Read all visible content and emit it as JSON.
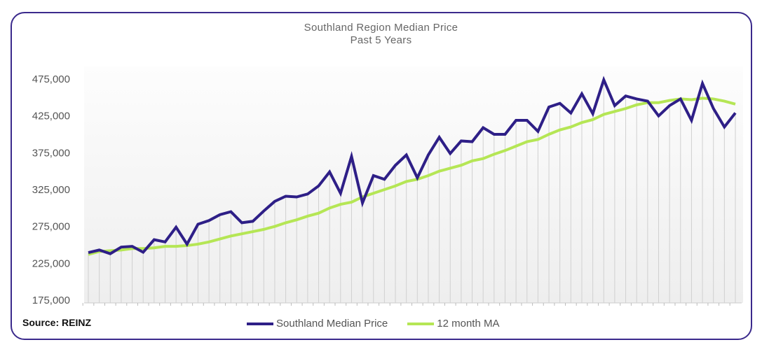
{
  "chart_data": {
    "type": "line",
    "title": "Southland Region Median Price",
    "subtitle": "Past 5 Years",
    "xlabel": "",
    "ylabel": "",
    "ylim": [
      175000,
      475000
    ],
    "yticks": [
      "175,000",
      "225,000",
      "275,000",
      "325,000",
      "375,000",
      "425,000",
      "475,000"
    ],
    "ytick_values": [
      175000,
      225000,
      275000,
      325000,
      375000,
      425000,
      475000
    ],
    "legend_position": "bottom",
    "series": [
      {
        "name": "Southland Median Price",
        "color": "#2e1f87",
        "values": [
          239500,
          243000,
          238000,
          247000,
          248000,
          240000,
          257000,
          254000,
          274000,
          251000,
          278000,
          283000,
          291000,
          295000,
          280000,
          282000,
          296000,
          309000,
          316000,
          315000,
          319000,
          330000,
          349000,
          320000,
          370000,
          307000,
          344000,
          339000,
          358000,
          372000,
          341000,
          372000,
          396000,
          374000,
          391000,
          390000,
          409000,
          400000,
          400000,
          419000,
          419000,
          404000,
          437000,
          442000,
          429000,
          455000,
          428000,
          474000,
          439000,
          452000,
          448000,
          445000,
          425000,
          439000,
          448000,
          419000,
          469000,
          435000,
          410000,
          429000
        ]
      },
      {
        "name": "12 month MA",
        "color": "#b5e655",
        "values": [
          237000,
          241000,
          242000,
          243000,
          245000,
          245000,
          246000,
          248000,
          248000,
          249000,
          251000,
          254000,
          258000,
          262000,
          265000,
          268000,
          271000,
          275000,
          280000,
          284000,
          289000,
          293000,
          300000,
          305000,
          308000,
          315000,
          320000,
          325000,
          330000,
          336000,
          339000,
          344000,
          350000,
          354000,
          358000,
          364000,
          367000,
          373000,
          378000,
          384000,
          390000,
          393000,
          400000,
          406000,
          410000,
          416000,
          420000,
          427000,
          431000,
          435000,
          440000,
          443000,
          443000,
          446000,
          448000,
          447000,
          449000,
          448000,
          445000,
          441000
        ]
      }
    ]
  },
  "source": "Source: REINZ"
}
